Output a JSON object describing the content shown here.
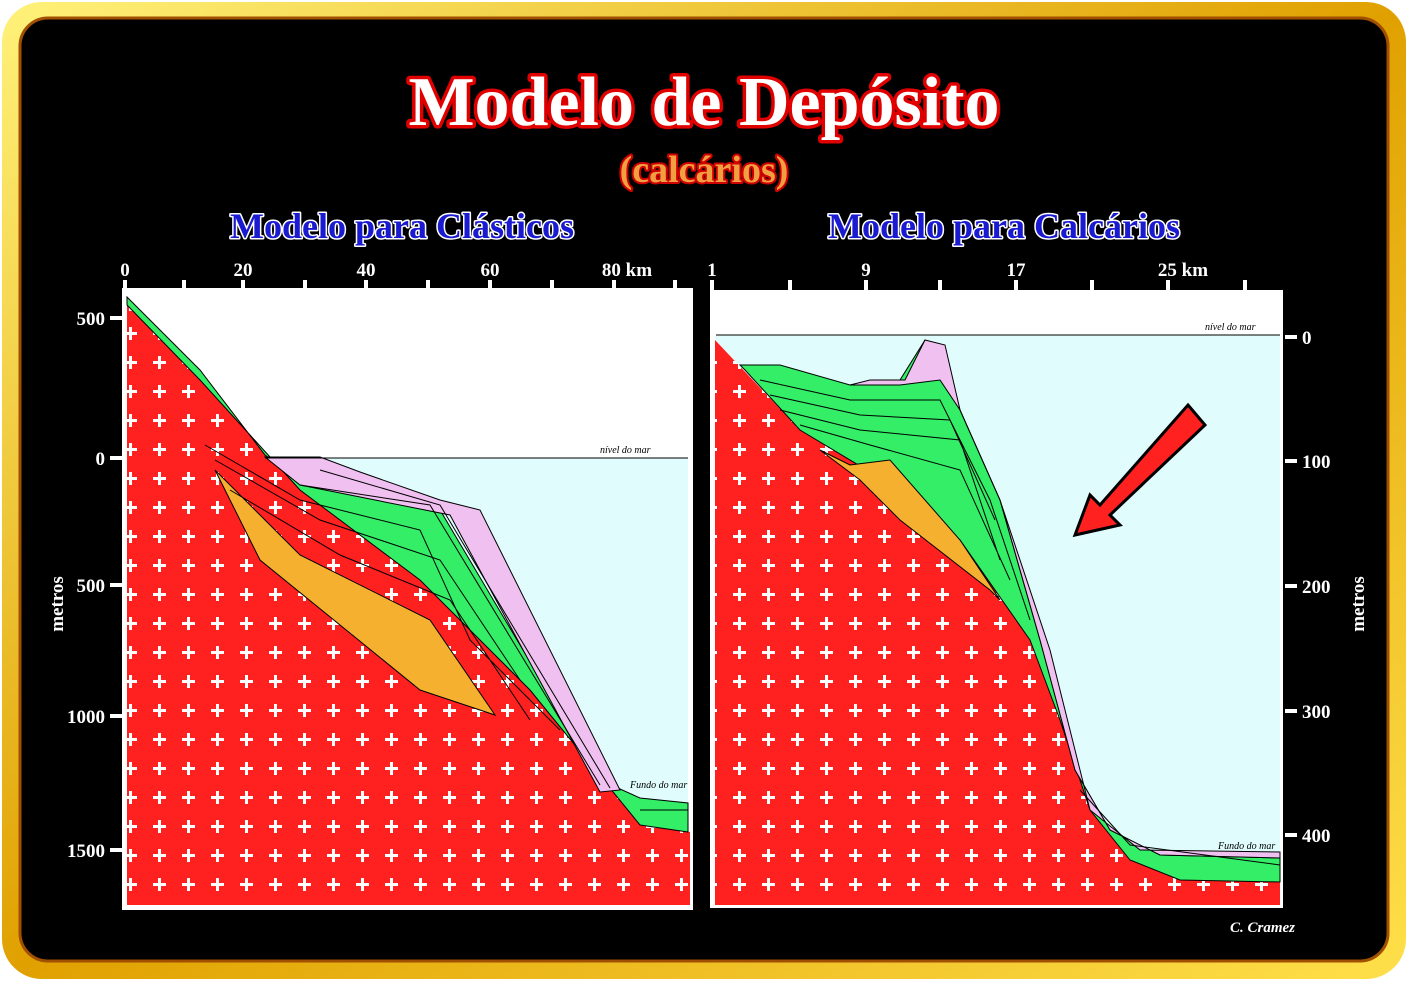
{
  "header": {
    "title": "Modelo de Depósito",
    "subtitle": "(calcários)"
  },
  "panels": [
    {
      "title": "Modelo para Clásticos",
      "top_ticks": [
        "0",
        "20",
        "40",
        "60",
        "80 km"
      ],
      "side_ticks": [
        "500",
        "0",
        "500",
        "1000",
        "1500"
      ],
      "axis_label": "metros",
      "sea_level": "nível do mar",
      "sea_floor": "Fundo do mar"
    },
    {
      "title": "Modelo para Calcários",
      "top_ticks": [
        "1",
        "9",
        "17",
        "25 km"
      ],
      "side_ticks": [
        "0",
        "100",
        "200",
        "300",
        "400"
      ],
      "axis_label": "metros",
      "sea_level": "nível do mar",
      "sea_floor": "Fundo do mar"
    }
  ],
  "credit": "C. Cramez"
}
